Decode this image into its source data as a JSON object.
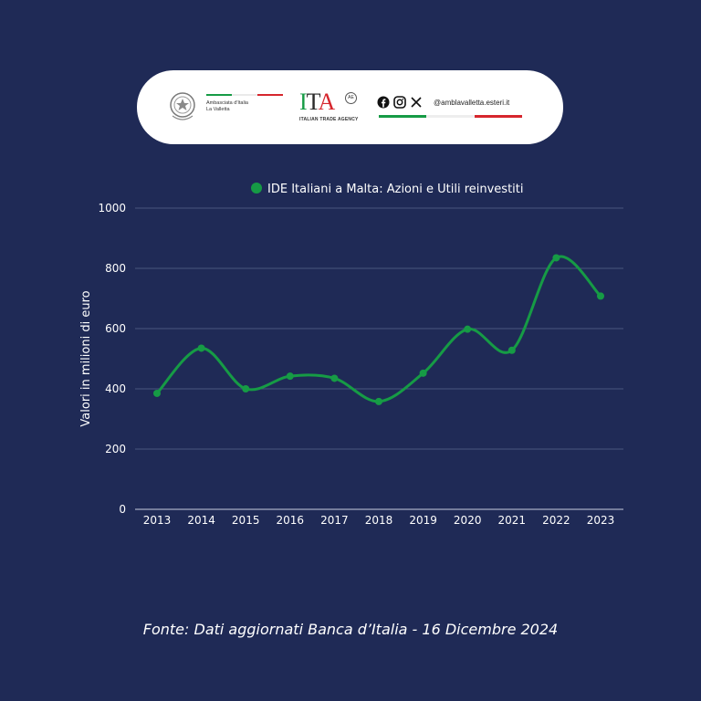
{
  "header": {
    "embassy_line1": "Ambasciata d'Italia",
    "embassy_line2": "La Valletta",
    "ita_logo_text": "ITA",
    "ita_subtitle": "ITALIAN TRADE AGENCY",
    "social_handle": "@amblavalletta.esteri.it",
    "colors": {
      "green": "#169b45",
      "white": "#f0f0f0",
      "red": "#d6262d"
    }
  },
  "chart_data": {
    "type": "line",
    "title": "",
    "ylabel": "Valori in milioni di euro",
    "xlabel": "",
    "legend_position": "top",
    "grid": true,
    "ylim": [
      0,
      1000
    ],
    "yticks": [
      "0",
      "200",
      "400",
      "600",
      "800",
      "1000"
    ],
    "categories": [
      "2013",
      "2014",
      "2015",
      "2016",
      "2017",
      "2018",
      "2019",
      "2020",
      "2021",
      "2022",
      "2023"
    ],
    "series": [
      {
        "name": "IDE Italiani a Malta: Azioni e Utili reinvestiti",
        "color": "#169b45",
        "values": [
          385,
          535,
          400,
          442,
          435,
          358,
          452,
          598,
          528,
          835,
          708
        ]
      }
    ]
  },
  "footer": {
    "source": "Fonte: Dati aggiornati Banca d’Italia - 16 Dicembre 2024"
  }
}
